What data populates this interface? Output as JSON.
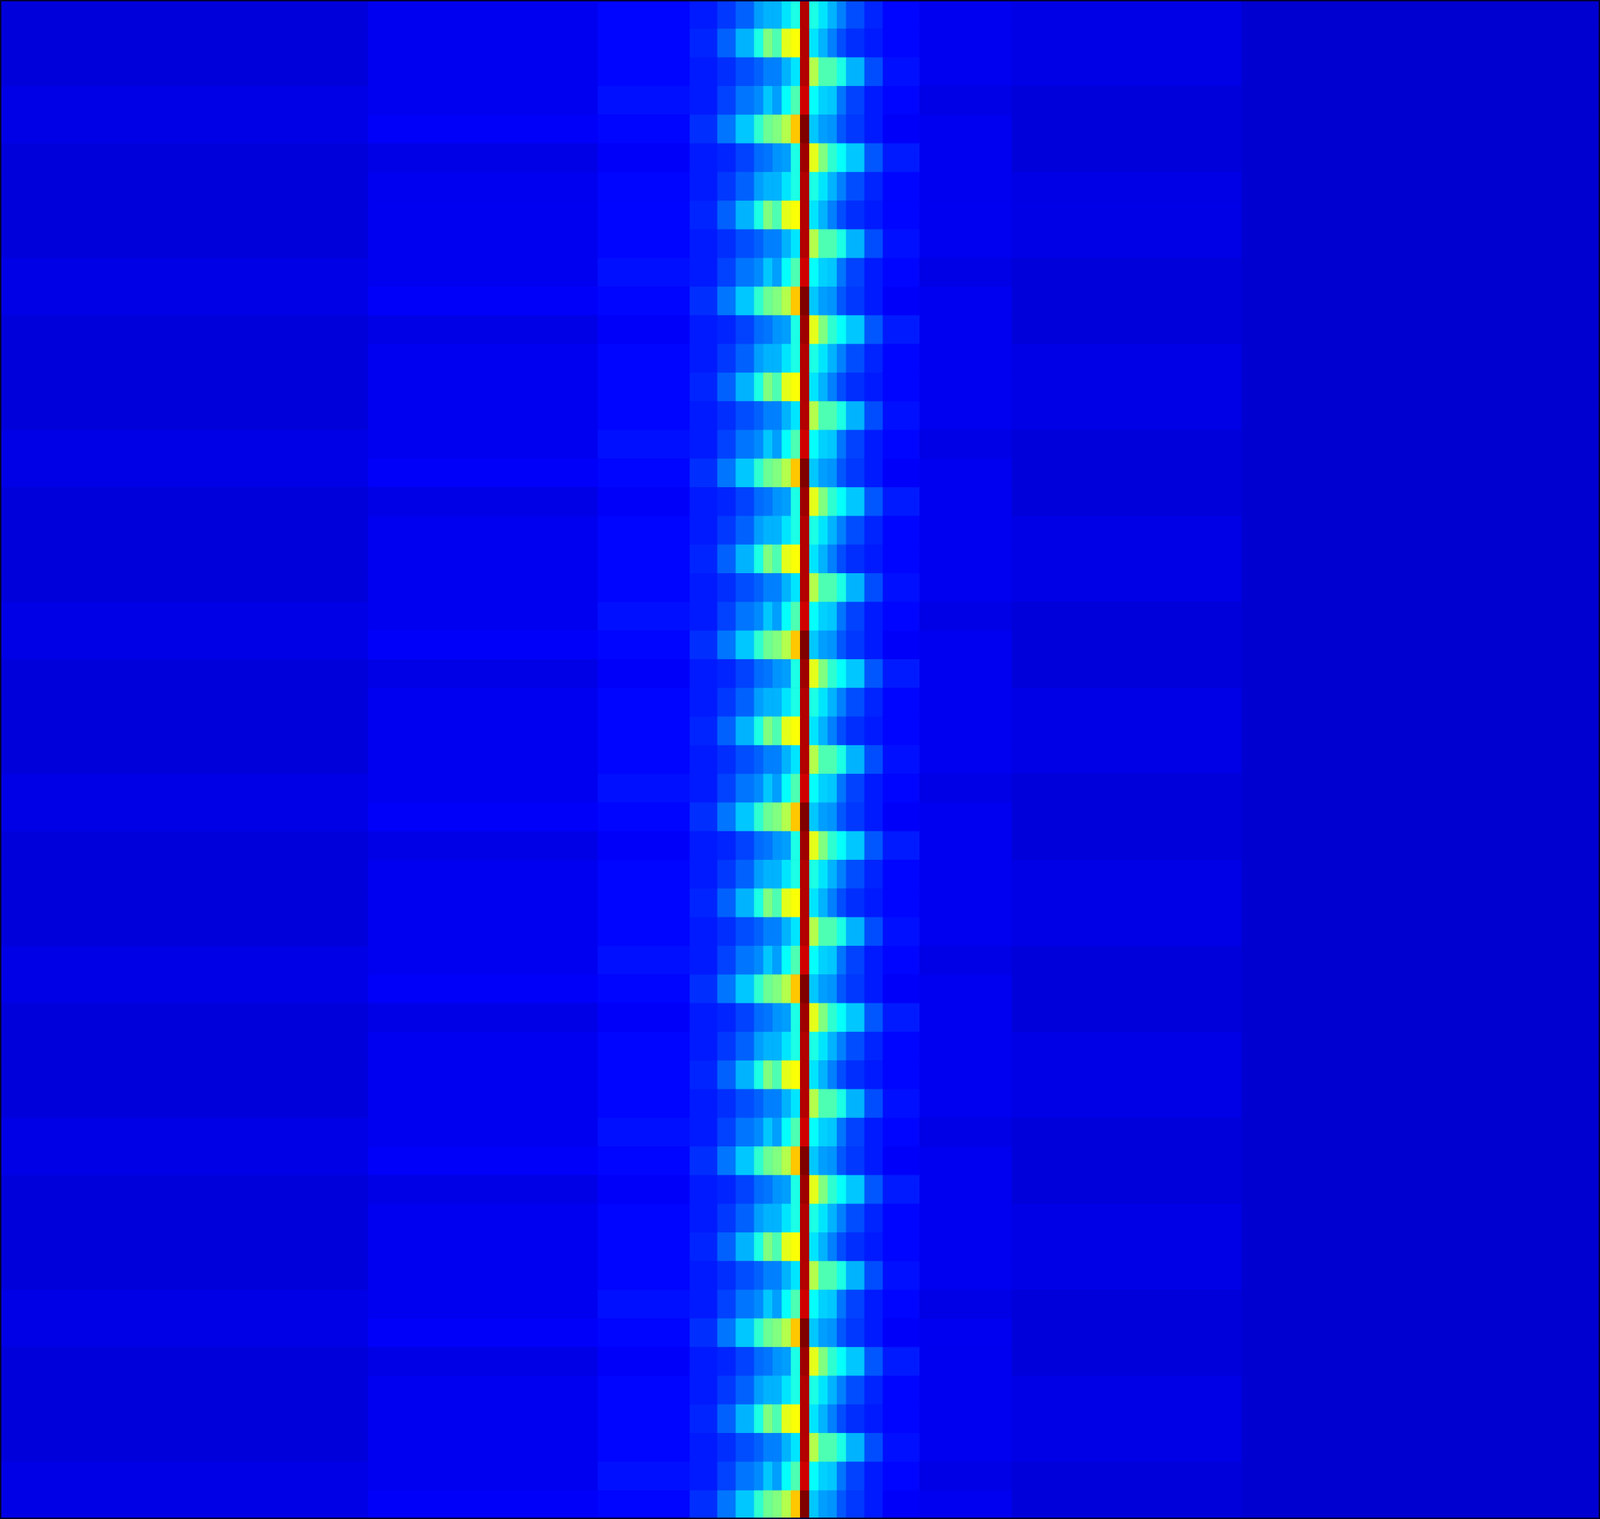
{
  "chart_data": {
    "type": "heatmap",
    "tick_labels": false,
    "xlim": [
      0,
      174
    ],
    "zlim": [
      0,
      1
    ],
    "x_edges": [
      0,
      40,
      65,
      75,
      78,
      80,
      82,
      83,
      84,
      85,
      86,
      87,
      88,
      89,
      90,
      91,
      92,
      94,
      96,
      100,
      110,
      135,
      174
    ],
    "cells": [
      [
        0.09,
        0.11,
        0.13,
        0.15,
        0.18,
        0.22,
        0.28,
        0.3,
        0.3,
        0.35,
        0.4,
        0.95,
        0.4,
        0.35,
        0.3,
        0.25,
        0.2,
        0.16,
        0.13,
        0.11,
        0.1,
        0.08
      ],
      [
        0.09,
        0.11,
        0.13,
        0.16,
        0.22,
        0.3,
        0.4,
        0.5,
        0.45,
        0.6,
        0.62,
        0.95,
        0.35,
        0.3,
        0.25,
        0.2,
        0.17,
        0.15,
        0.13,
        0.11,
        0.1,
        0.08
      ],
      [
        0.09,
        0.11,
        0.13,
        0.15,
        0.17,
        0.2,
        0.22,
        0.25,
        0.25,
        0.3,
        0.35,
        0.95,
        0.55,
        0.45,
        0.45,
        0.4,
        0.3,
        0.2,
        0.14,
        0.11,
        0.1,
        0.08
      ],
      [
        0.1,
        0.11,
        0.14,
        0.15,
        0.19,
        0.24,
        0.26,
        0.32,
        0.28,
        0.38,
        0.45,
        0.92,
        0.38,
        0.33,
        0.32,
        0.24,
        0.19,
        0.15,
        0.13,
        0.1,
        0.09,
        0.08
      ],
      [
        0.1,
        0.12,
        0.13,
        0.17,
        0.24,
        0.32,
        0.42,
        0.48,
        0.5,
        0.55,
        0.68,
        1.0,
        0.32,
        0.28,
        0.27,
        0.21,
        0.18,
        0.15,
        0.12,
        0.11,
        0.09,
        0.08
      ],
      [
        0.09,
        0.1,
        0.12,
        0.15,
        0.16,
        0.19,
        0.23,
        0.24,
        0.27,
        0.28,
        0.4,
        0.97,
        0.6,
        0.5,
        0.42,
        0.38,
        0.32,
        0.21,
        0.15,
        0.11,
        0.09,
        0.08
      ],
      [
        0.09,
        0.11,
        0.13,
        0.15,
        0.18,
        0.22,
        0.28,
        0.3,
        0.3,
        0.35,
        0.4,
        0.95,
        0.4,
        0.35,
        0.3,
        0.25,
        0.2,
        0.16,
        0.13,
        0.11,
        0.1,
        0.08
      ],
      [
        0.09,
        0.11,
        0.13,
        0.16,
        0.22,
        0.3,
        0.4,
        0.5,
        0.45,
        0.6,
        0.62,
        0.95,
        0.35,
        0.3,
        0.25,
        0.2,
        0.17,
        0.15,
        0.13,
        0.11,
        0.1,
        0.08
      ],
      [
        0.09,
        0.11,
        0.13,
        0.15,
        0.17,
        0.2,
        0.22,
        0.25,
        0.25,
        0.3,
        0.35,
        0.95,
        0.55,
        0.45,
        0.45,
        0.4,
        0.3,
        0.2,
        0.14,
        0.11,
        0.1,
        0.08
      ],
      [
        0.1,
        0.11,
        0.14,
        0.15,
        0.19,
        0.24,
        0.26,
        0.32,
        0.28,
        0.38,
        0.45,
        0.92,
        0.38,
        0.33,
        0.32,
        0.24,
        0.19,
        0.15,
        0.13,
        0.1,
        0.09,
        0.08
      ],
      [
        0.1,
        0.12,
        0.13,
        0.17,
        0.24,
        0.32,
        0.42,
        0.48,
        0.5,
        0.55,
        0.68,
        1.0,
        0.32,
        0.28,
        0.27,
        0.21,
        0.18,
        0.15,
        0.12,
        0.11,
        0.09,
        0.08
      ],
      [
        0.09,
        0.1,
        0.12,
        0.15,
        0.16,
        0.19,
        0.23,
        0.24,
        0.27,
        0.28,
        0.4,
        0.97,
        0.6,
        0.5,
        0.42,
        0.38,
        0.32,
        0.21,
        0.15,
        0.11,
        0.09,
        0.08
      ],
      [
        0.09,
        0.11,
        0.13,
        0.15,
        0.18,
        0.22,
        0.28,
        0.3,
        0.3,
        0.35,
        0.4,
        0.95,
        0.4,
        0.35,
        0.3,
        0.25,
        0.2,
        0.16,
        0.13,
        0.11,
        0.1,
        0.08
      ],
      [
        0.09,
        0.11,
        0.13,
        0.16,
        0.22,
        0.3,
        0.4,
        0.5,
        0.45,
        0.6,
        0.62,
        0.95,
        0.35,
        0.3,
        0.25,
        0.2,
        0.17,
        0.15,
        0.13,
        0.11,
        0.1,
        0.08
      ],
      [
        0.09,
        0.11,
        0.13,
        0.15,
        0.17,
        0.2,
        0.22,
        0.25,
        0.25,
        0.3,
        0.35,
        0.95,
        0.55,
        0.45,
        0.45,
        0.4,
        0.3,
        0.2,
        0.14,
        0.11,
        0.1,
        0.08
      ],
      [
        0.1,
        0.11,
        0.14,
        0.15,
        0.19,
        0.24,
        0.26,
        0.32,
        0.28,
        0.38,
        0.45,
        0.92,
        0.38,
        0.33,
        0.32,
        0.24,
        0.19,
        0.15,
        0.13,
        0.1,
        0.09,
        0.08
      ],
      [
        0.1,
        0.12,
        0.13,
        0.17,
        0.24,
        0.32,
        0.42,
        0.48,
        0.5,
        0.55,
        0.68,
        1.0,
        0.32,
        0.28,
        0.27,
        0.21,
        0.18,
        0.15,
        0.12,
        0.11,
        0.09,
        0.08
      ],
      [
        0.09,
        0.1,
        0.12,
        0.15,
        0.16,
        0.19,
        0.23,
        0.24,
        0.27,
        0.28,
        0.4,
        0.97,
        0.6,
        0.5,
        0.42,
        0.38,
        0.32,
        0.21,
        0.15,
        0.11,
        0.09,
        0.08
      ],
      [
        0.09,
        0.11,
        0.13,
        0.15,
        0.18,
        0.22,
        0.28,
        0.3,
        0.3,
        0.35,
        0.4,
        0.95,
        0.4,
        0.35,
        0.3,
        0.25,
        0.2,
        0.16,
        0.13,
        0.11,
        0.1,
        0.08
      ],
      [
        0.09,
        0.11,
        0.13,
        0.16,
        0.22,
        0.3,
        0.4,
        0.5,
        0.45,
        0.6,
        0.62,
        0.95,
        0.35,
        0.3,
        0.25,
        0.2,
        0.17,
        0.15,
        0.13,
        0.11,
        0.1,
        0.08
      ],
      [
        0.09,
        0.11,
        0.13,
        0.15,
        0.17,
        0.2,
        0.22,
        0.25,
        0.25,
        0.3,
        0.35,
        0.95,
        0.55,
        0.45,
        0.45,
        0.4,
        0.3,
        0.2,
        0.14,
        0.11,
        0.1,
        0.08
      ],
      [
        0.1,
        0.11,
        0.14,
        0.15,
        0.19,
        0.24,
        0.26,
        0.32,
        0.28,
        0.38,
        0.45,
        0.92,
        0.38,
        0.33,
        0.32,
        0.24,
        0.19,
        0.15,
        0.13,
        0.1,
        0.09,
        0.08
      ],
      [
        0.1,
        0.12,
        0.13,
        0.17,
        0.24,
        0.32,
        0.42,
        0.48,
        0.5,
        0.55,
        0.68,
        1.0,
        0.32,
        0.28,
        0.27,
        0.21,
        0.18,
        0.15,
        0.12,
        0.11,
        0.09,
        0.08
      ],
      [
        0.09,
        0.1,
        0.12,
        0.15,
        0.16,
        0.19,
        0.23,
        0.24,
        0.27,
        0.28,
        0.4,
        0.97,
        0.6,
        0.5,
        0.42,
        0.38,
        0.32,
        0.21,
        0.15,
        0.11,
        0.09,
        0.08
      ],
      [
        0.09,
        0.11,
        0.13,
        0.15,
        0.18,
        0.22,
        0.28,
        0.3,
        0.3,
        0.35,
        0.4,
        0.95,
        0.4,
        0.35,
        0.3,
        0.25,
        0.2,
        0.16,
        0.13,
        0.11,
        0.1,
        0.08
      ],
      [
        0.09,
        0.11,
        0.13,
        0.16,
        0.22,
        0.3,
        0.4,
        0.5,
        0.45,
        0.6,
        0.62,
        0.95,
        0.35,
        0.3,
        0.25,
        0.2,
        0.17,
        0.15,
        0.13,
        0.11,
        0.1,
        0.08
      ],
      [
        0.09,
        0.11,
        0.13,
        0.15,
        0.17,
        0.2,
        0.22,
        0.25,
        0.25,
        0.3,
        0.35,
        0.95,
        0.55,
        0.45,
        0.45,
        0.4,
        0.3,
        0.2,
        0.14,
        0.11,
        0.1,
        0.08
      ],
      [
        0.1,
        0.11,
        0.14,
        0.15,
        0.19,
        0.24,
        0.26,
        0.32,
        0.28,
        0.38,
        0.45,
        0.92,
        0.38,
        0.33,
        0.32,
        0.24,
        0.19,
        0.15,
        0.13,
        0.1,
        0.09,
        0.08
      ],
      [
        0.1,
        0.12,
        0.13,
        0.17,
        0.24,
        0.32,
        0.42,
        0.48,
        0.5,
        0.55,
        0.68,
        1.0,
        0.32,
        0.28,
        0.27,
        0.21,
        0.18,
        0.15,
        0.12,
        0.11,
        0.09,
        0.08
      ],
      [
        0.09,
        0.1,
        0.12,
        0.15,
        0.16,
        0.19,
        0.23,
        0.24,
        0.27,
        0.28,
        0.4,
        0.97,
        0.6,
        0.5,
        0.42,
        0.38,
        0.32,
        0.21,
        0.15,
        0.11,
        0.09,
        0.08
      ],
      [
        0.09,
        0.11,
        0.13,
        0.15,
        0.18,
        0.22,
        0.28,
        0.3,
        0.3,
        0.35,
        0.4,
        0.95,
        0.4,
        0.35,
        0.3,
        0.25,
        0.2,
        0.16,
        0.13,
        0.11,
        0.1,
        0.08
      ],
      [
        0.09,
        0.11,
        0.13,
        0.16,
        0.22,
        0.3,
        0.4,
        0.5,
        0.45,
        0.6,
        0.62,
        0.95,
        0.35,
        0.3,
        0.25,
        0.2,
        0.17,
        0.15,
        0.13,
        0.11,
        0.1,
        0.08
      ],
      [
        0.09,
        0.11,
        0.13,
        0.15,
        0.17,
        0.2,
        0.22,
        0.25,
        0.25,
        0.3,
        0.35,
        0.95,
        0.55,
        0.45,
        0.45,
        0.4,
        0.3,
        0.2,
        0.14,
        0.11,
        0.1,
        0.08
      ],
      [
        0.1,
        0.11,
        0.14,
        0.15,
        0.19,
        0.24,
        0.26,
        0.32,
        0.28,
        0.38,
        0.45,
        0.92,
        0.38,
        0.33,
        0.32,
        0.24,
        0.19,
        0.15,
        0.13,
        0.1,
        0.09,
        0.08
      ],
      [
        0.1,
        0.12,
        0.13,
        0.17,
        0.24,
        0.32,
        0.42,
        0.48,
        0.5,
        0.55,
        0.68,
        1.0,
        0.32,
        0.28,
        0.27,
        0.21,
        0.18,
        0.15,
        0.12,
        0.11,
        0.09,
        0.08
      ],
      [
        0.09,
        0.1,
        0.12,
        0.15,
        0.16,
        0.19,
        0.23,
        0.24,
        0.27,
        0.28,
        0.4,
        0.97,
        0.6,
        0.5,
        0.42,
        0.38,
        0.32,
        0.21,
        0.15,
        0.11,
        0.09,
        0.08
      ],
      [
        0.09,
        0.11,
        0.13,
        0.15,
        0.18,
        0.22,
        0.28,
        0.3,
        0.3,
        0.35,
        0.4,
        0.95,
        0.4,
        0.35,
        0.3,
        0.25,
        0.2,
        0.16,
        0.13,
        0.11,
        0.1,
        0.08
      ],
      [
        0.09,
        0.11,
        0.13,
        0.16,
        0.22,
        0.3,
        0.4,
        0.5,
        0.45,
        0.6,
        0.62,
        0.95,
        0.35,
        0.3,
        0.25,
        0.2,
        0.17,
        0.15,
        0.13,
        0.11,
        0.1,
        0.08
      ],
      [
        0.09,
        0.11,
        0.13,
        0.15,
        0.17,
        0.2,
        0.22,
        0.25,
        0.25,
        0.3,
        0.35,
        0.95,
        0.55,
        0.45,
        0.45,
        0.4,
        0.3,
        0.2,
        0.14,
        0.11,
        0.1,
        0.08
      ],
      [
        0.1,
        0.11,
        0.14,
        0.15,
        0.19,
        0.24,
        0.26,
        0.32,
        0.28,
        0.38,
        0.45,
        0.92,
        0.38,
        0.33,
        0.32,
        0.24,
        0.19,
        0.15,
        0.13,
        0.1,
        0.09,
        0.08
      ],
      [
        0.1,
        0.12,
        0.13,
        0.17,
        0.24,
        0.32,
        0.42,
        0.48,
        0.5,
        0.55,
        0.68,
        1.0,
        0.32,
        0.28,
        0.27,
        0.21,
        0.18,
        0.15,
        0.12,
        0.11,
        0.09,
        0.08
      ],
      [
        0.09,
        0.1,
        0.12,
        0.15,
        0.16,
        0.19,
        0.23,
        0.24,
        0.27,
        0.28,
        0.4,
        0.97,
        0.6,
        0.5,
        0.42,
        0.38,
        0.32,
        0.21,
        0.15,
        0.11,
        0.09,
        0.08
      ],
      [
        0.09,
        0.11,
        0.13,
        0.15,
        0.18,
        0.22,
        0.28,
        0.3,
        0.3,
        0.35,
        0.4,
        0.95,
        0.4,
        0.35,
        0.3,
        0.25,
        0.2,
        0.16,
        0.13,
        0.11,
        0.1,
        0.08
      ],
      [
        0.09,
        0.11,
        0.13,
        0.16,
        0.22,
        0.3,
        0.4,
        0.5,
        0.45,
        0.6,
        0.62,
        0.95,
        0.35,
        0.3,
        0.25,
        0.2,
        0.17,
        0.15,
        0.13,
        0.11,
        0.1,
        0.08
      ],
      [
        0.09,
        0.11,
        0.13,
        0.15,
        0.17,
        0.2,
        0.22,
        0.25,
        0.25,
        0.3,
        0.35,
        0.95,
        0.55,
        0.45,
        0.45,
        0.4,
        0.3,
        0.2,
        0.14,
        0.11,
        0.1,
        0.08
      ],
      [
        0.1,
        0.11,
        0.14,
        0.15,
        0.19,
        0.24,
        0.26,
        0.32,
        0.28,
        0.38,
        0.45,
        0.92,
        0.38,
        0.33,
        0.32,
        0.24,
        0.19,
        0.15,
        0.13,
        0.1,
        0.09,
        0.08
      ],
      [
        0.1,
        0.12,
        0.13,
        0.17,
        0.24,
        0.32,
        0.42,
        0.48,
        0.5,
        0.55,
        0.68,
        1.0,
        0.32,
        0.28,
        0.27,
        0.21,
        0.18,
        0.15,
        0.12,
        0.11,
        0.09,
        0.08
      ],
      [
        0.09,
        0.1,
        0.12,
        0.15,
        0.16,
        0.19,
        0.23,
        0.24,
        0.27,
        0.28,
        0.4,
        0.97,
        0.6,
        0.5,
        0.42,
        0.38,
        0.32,
        0.21,
        0.15,
        0.11,
        0.09,
        0.08
      ],
      [
        0.09,
        0.11,
        0.13,
        0.15,
        0.18,
        0.22,
        0.28,
        0.3,
        0.3,
        0.35,
        0.4,
        0.95,
        0.4,
        0.35,
        0.3,
        0.25,
        0.2,
        0.16,
        0.13,
        0.11,
        0.1,
        0.08
      ],
      [
        0.09,
        0.11,
        0.13,
        0.16,
        0.22,
        0.3,
        0.4,
        0.5,
        0.45,
        0.6,
        0.62,
        0.95,
        0.35,
        0.3,
        0.25,
        0.2,
        0.17,
        0.15,
        0.13,
        0.11,
        0.1,
        0.08
      ],
      [
        0.09,
        0.11,
        0.13,
        0.15,
        0.17,
        0.2,
        0.22,
        0.25,
        0.25,
        0.3,
        0.35,
        0.95,
        0.55,
        0.45,
        0.45,
        0.4,
        0.3,
        0.2,
        0.14,
        0.11,
        0.1,
        0.08
      ],
      [
        0.1,
        0.11,
        0.14,
        0.15,
        0.19,
        0.24,
        0.26,
        0.32,
        0.28,
        0.38,
        0.45,
        0.92,
        0.38,
        0.33,
        0.32,
        0.24,
        0.19,
        0.15,
        0.13,
        0.1,
        0.09,
        0.08
      ],
      [
        0.1,
        0.12,
        0.13,
        0.17,
        0.24,
        0.32,
        0.42,
        0.48,
        0.5,
        0.55,
        0.68,
        1.0,
        0.32,
        0.28,
        0.27,
        0.21,
        0.18,
        0.15,
        0.12,
        0.11,
        0.09,
        0.08
      ]
    ]
  }
}
